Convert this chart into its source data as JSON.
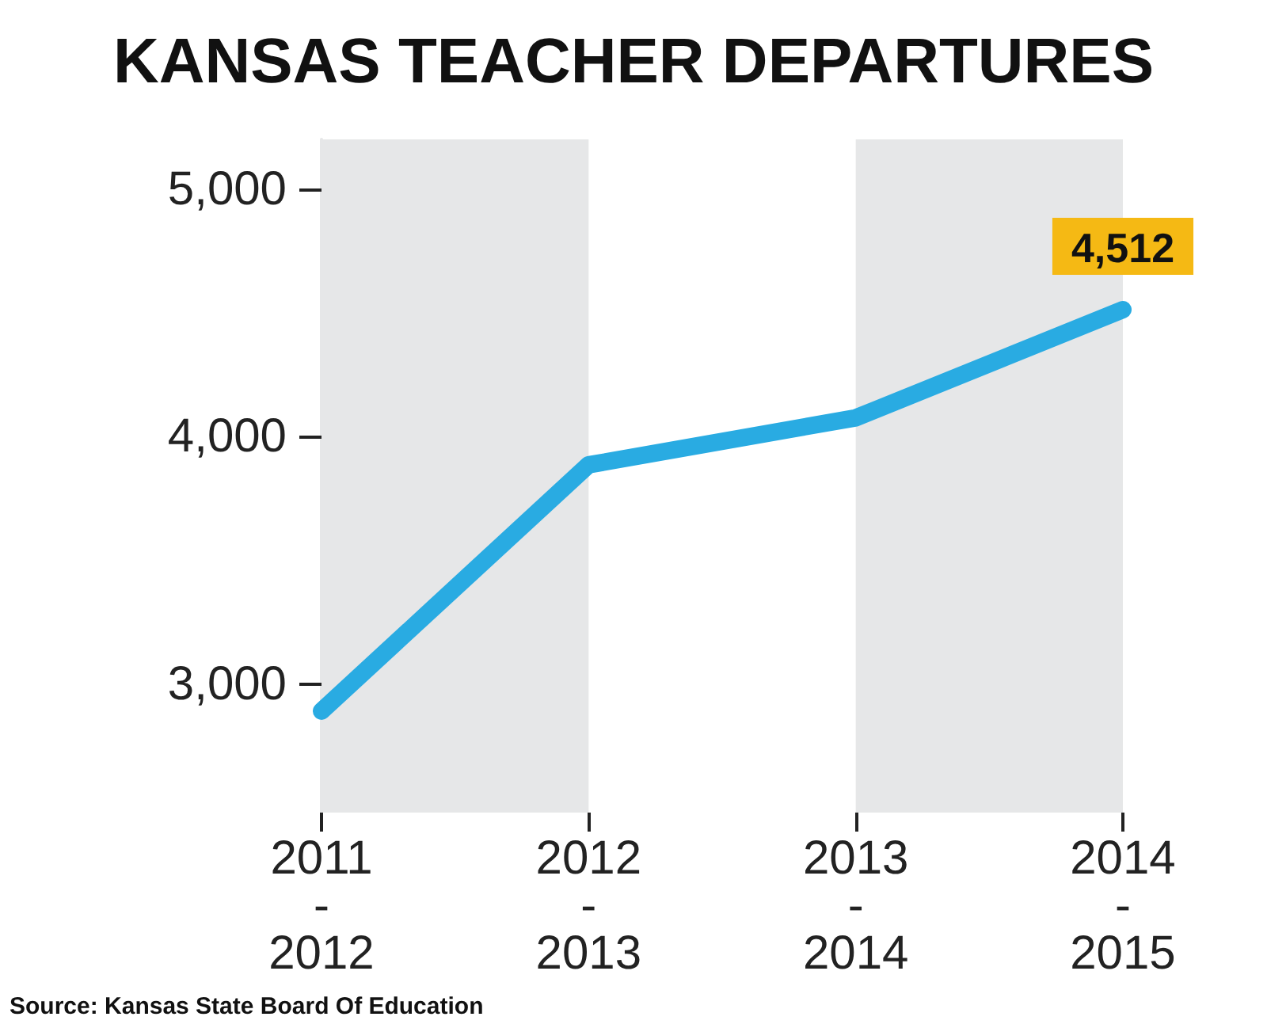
{
  "chart_data": {
    "type": "line",
    "title": "KANSAS TEACHER DEPARTURES",
    "categories": [
      "2011-2012",
      "2012-2013",
      "2013-2014",
      "2014-2015"
    ],
    "values": [
      2890,
      3885,
      4075,
      4512
    ],
    "value_labels": [
      null,
      null,
      null,
      "4,512"
    ],
    "color": "#29abe2",
    "ylim": [
      2480,
      5200
    ],
    "yticks": [
      {
        "value": 3000,
        "label": "3,000"
      },
      {
        "value": 4000,
        "label": "4,000"
      },
      {
        "value": 5000,
        "label": "5,000"
      }
    ],
    "bands": [
      {
        "axis": "x",
        "from": "2011-2012",
        "to": "2012-2013",
        "color": "#e6e7e8"
      },
      {
        "axis": "x",
        "from": "2013-2014",
        "to": "2014-2015",
        "color": "#e6e7e8"
      }
    ],
    "grid": false,
    "marker": "none",
    "line_style": "solid",
    "annotations": [
      "Source: Kansas State Board Of Education"
    ]
  }
}
